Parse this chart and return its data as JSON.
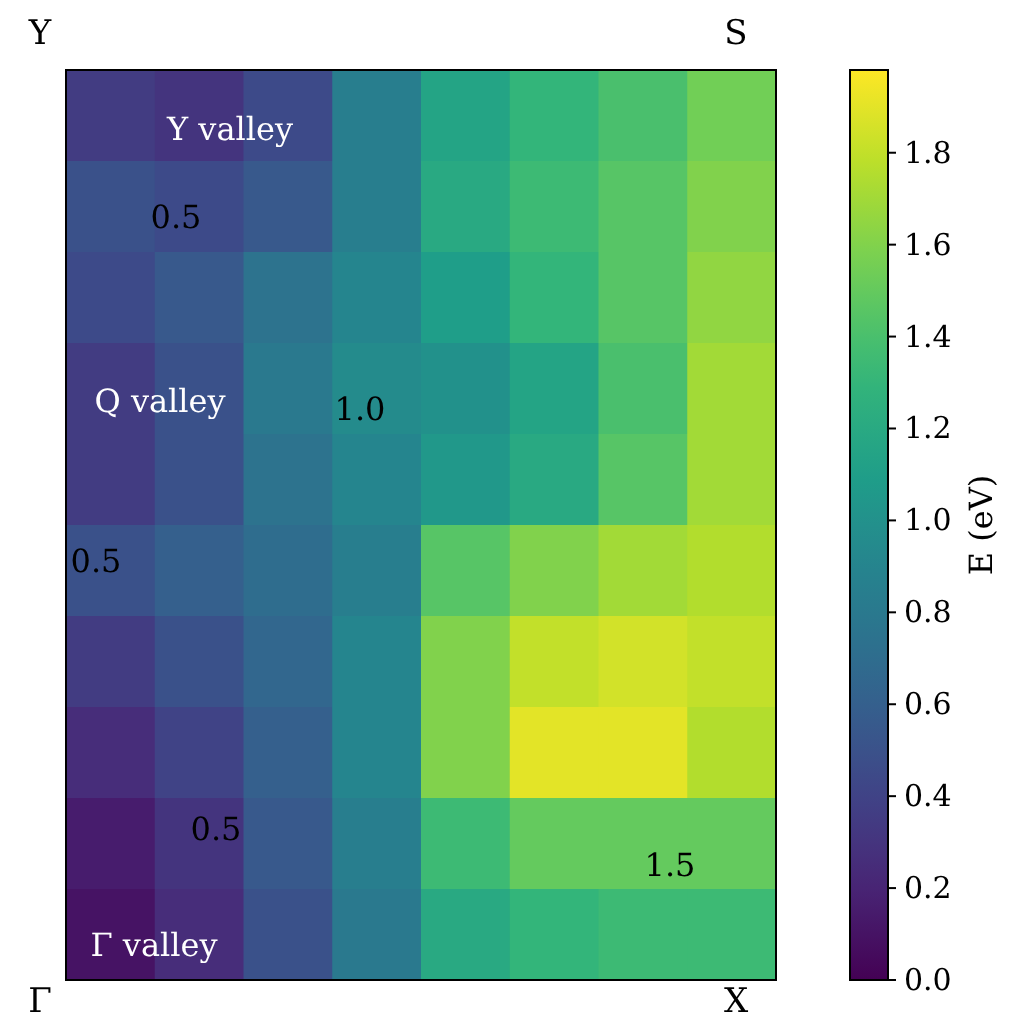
{
  "chart_data": {
    "type": "heatmap",
    "clabel": "E (eV)",
    "categories": [
      null,
      null,
      null,
      null,
      null,
      null,
      null,
      null
    ],
    "y_categories": [
      null,
      null,
      null,
      null,
      null,
      null,
      null,
      null,
      null,
      null
    ],
    "cells": [
      [
        0.35,
        0.3,
        0.45,
        0.85,
        1.15,
        1.3,
        1.4,
        1.55
      ],
      [
        0.5,
        0.45,
        0.55,
        0.85,
        1.2,
        1.35,
        1.45,
        1.6
      ],
      [
        0.45,
        0.55,
        0.75,
        0.9,
        1.1,
        1.3,
        1.45,
        1.65
      ],
      [
        0.35,
        0.5,
        0.8,
        0.95,
        1.0,
        1.15,
        1.4,
        1.7
      ],
      [
        0.35,
        0.5,
        0.75,
        0.9,
        1.05,
        1.2,
        1.45,
        1.7
      ],
      [
        0.5,
        0.6,
        0.7,
        0.85,
        1.45,
        1.6,
        1.7,
        1.75
      ],
      [
        0.35,
        0.5,
        0.65,
        0.9,
        1.6,
        1.8,
        1.85,
        1.8
      ],
      [
        0.25,
        0.4,
        0.6,
        0.9,
        1.6,
        1.9,
        1.9,
        1.75
      ],
      [
        0.15,
        0.3,
        0.55,
        0.85,
        1.35,
        1.5,
        1.5,
        1.5
      ],
      [
        0.1,
        0.25,
        0.5,
        0.8,
        1.2,
        1.3,
        1.35,
        1.35
      ]
    ],
    "clim": [
      0,
      1.98
    ],
    "cticks": [
      {
        "value": 0,
        "label": "0.0"
      },
      {
        "value": 0.2,
        "label": "0.2"
      },
      {
        "value": 0.4,
        "label": "0.4"
      },
      {
        "value": 0.6,
        "label": "0.6"
      },
      {
        "value": 0.8,
        "label": "0.8"
      },
      {
        "value": 1.0,
        "label": "1.0"
      },
      {
        "value": 1.2,
        "label": "1.2"
      },
      {
        "value": 1.4,
        "label": "1.4"
      },
      {
        "value": 1.6,
        "label": "1.6"
      },
      {
        "value": 1.8,
        "label": "1.8"
      }
    ],
    "annotations": [
      "Y",
      "S",
      "Γ",
      "X",
      "Y valley",
      "Q valley",
      "Γ valley",
      "0.5",
      "0.5",
      "0.5",
      "1.0",
      "1.5"
    ]
  }
}
